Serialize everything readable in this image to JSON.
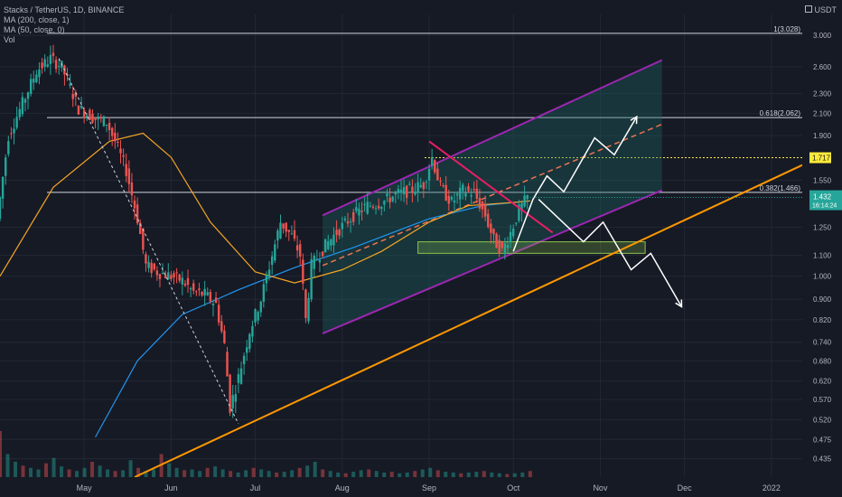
{
  "header": {
    "symbol": "Stacks / TetherUS, 1D, BINANCE",
    "ma200": "MA (200, close, 1)",
    "ma50": "MA (50, close, 0)",
    "vol": "Vol",
    "currency": "USDT"
  },
  "colors": {
    "background": "#161a25",
    "up": "#26a69a",
    "down": "#ef5350",
    "ma200": "#2196f3",
    "ma50": "#f5a623",
    "channel": "#9c27b0",
    "support": "#ff9800",
    "fib": "#d1d4dc",
    "projection": "#ffffff",
    "wedge": "#e91e63",
    "zone": "#8bc34a",
    "price_badge": "#26a69a",
    "level_badge": "#ffeb3b"
  },
  "chart_data": {
    "type": "candlestick",
    "title": "Stacks / TetherUS, 1D, BINANCE",
    "y_scale": "log",
    "ylim": [
      0.4,
      3.3
    ],
    "y_ticks": [
      "3.000",
      "2.600",
      "2.300",
      "2.100",
      "1.900",
      "1.550",
      "1.250",
      "1.100",
      "1.000",
      "0.900",
      "0.820",
      "0.740",
      "0.680",
      "0.620",
      "0.570",
      "0.520",
      "0.475",
      "0.435"
    ],
    "x_ticks": [
      "May",
      "Jun",
      "Jul",
      "Aug",
      "Sep",
      "Oct",
      "Nov",
      "Dec",
      "2022"
    ],
    "xlim": [
      "2021-04-01",
      "2022-01-12"
    ],
    "last_price": "1.432",
    "countdown": "16:14:24",
    "key_level": "1.717",
    "fib_levels": [
      {
        "label": "1(3.028)",
        "value": 3.028
      },
      {
        "label": "0.618(2.062)",
        "value": 2.062
      },
      {
        "label": "0.382(1.466)",
        "value": 1.466
      }
    ],
    "price_path": [
      [
        "2021-04-01",
        1.3
      ],
      [
        "2021-04-05",
        1.9
      ],
      [
        "2021-04-10",
        2.2
      ],
      [
        "2021-04-15",
        2.55
      ],
      [
        "2021-04-20",
        2.7
      ],
      [
        "2021-04-24",
        2.6
      ],
      [
        "2021-04-30",
        2.15
      ],
      [
        "2021-05-06",
        2.05
      ],
      [
        "2021-05-10",
        2.02
      ],
      [
        "2021-05-13",
        1.85
      ],
      [
        "2021-05-17",
        1.62
      ],
      [
        "2021-05-21",
        1.3
      ],
      [
        "2021-05-24",
        1.05
      ],
      [
        "2021-05-28",
        1.02
      ],
      [
        "2021-06-02",
        1.0
      ],
      [
        "2021-06-06",
        0.98
      ],
      [
        "2021-06-10",
        0.93
      ],
      [
        "2021-06-14",
        0.92
      ],
      [
        "2021-06-18",
        0.88
      ],
      [
        "2021-06-21",
        0.73
      ],
      [
        "2021-06-23",
        0.55
      ],
      [
        "2021-06-26",
        0.63
      ],
      [
        "2021-06-30",
        0.78
      ],
      [
        "2021-07-04",
        0.9
      ],
      [
        "2021-07-08",
        1.1
      ],
      [
        "2021-07-11",
        1.28
      ],
      [
        "2021-07-15",
        1.2
      ],
      [
        "2021-07-18",
        1.1
      ],
      [
        "2021-07-20",
        0.82
      ],
      [
        "2021-07-22",
        1.05
      ],
      [
        "2021-07-27",
        1.15
      ],
      [
        "2021-08-01",
        1.24
      ],
      [
        "2021-08-06",
        1.32
      ],
      [
        "2021-08-11",
        1.38
      ],
      [
        "2021-08-16",
        1.4
      ],
      [
        "2021-08-21",
        1.45
      ],
      [
        "2021-08-26",
        1.48
      ],
      [
        "2021-08-31",
        1.52
      ],
      [
        "2021-09-03",
        1.72
      ],
      [
        "2021-09-06",
        1.5
      ],
      [
        "2021-09-10",
        1.4
      ],
      [
        "2021-09-14",
        1.48
      ],
      [
        "2021-09-18",
        1.46
      ],
      [
        "2021-09-22",
        1.32
      ],
      [
        "2021-09-25",
        1.18
      ],
      [
        "2021-09-28",
        1.12
      ],
      [
        "2021-10-01",
        1.22
      ],
      [
        "2021-10-04",
        1.35
      ],
      [
        "2021-10-07",
        1.432
      ]
    ],
    "ma50_path": [
      [
        "2021-04-01",
        1.0
      ],
      [
        "2021-04-20",
        1.5
      ],
      [
        "2021-05-10",
        1.85
      ],
      [
        "2021-05-22",
        1.92
      ],
      [
        "2021-06-01",
        1.72
      ],
      [
        "2021-06-15",
        1.28
      ],
      [
        "2021-07-01",
        1.02
      ],
      [
        "2021-07-15",
        0.97
      ],
      [
        "2021-08-01",
        1.03
      ],
      [
        "2021-08-15",
        1.12
      ],
      [
        "2021-09-01",
        1.28
      ],
      [
        "2021-09-15",
        1.38
      ],
      [
        "2021-10-01",
        1.4
      ],
      [
        "2021-10-07",
        1.41
      ]
    ],
    "ma200_path": [
      [
        "2021-05-05",
        0.48
      ],
      [
        "2021-05-20",
        0.68
      ],
      [
        "2021-06-05",
        0.84
      ],
      [
        "2021-06-25",
        0.94
      ],
      [
        "2021-07-15",
        1.04
      ],
      [
        "2021-08-05",
        1.14
      ],
      [
        "2021-09-01",
        1.3
      ],
      [
        "2021-09-20",
        1.38
      ],
      [
        "2021-10-07",
        1.41
      ]
    ],
    "volume": {
      "ylim": [
        0,
        100
      ],
      "values": [
        60,
        30,
        20,
        15,
        12,
        10,
        18,
        25,
        14,
        10,
        8,
        12,
        20,
        15,
        10,
        8,
        9,
        22,
        12,
        8,
        10,
        30,
        18,
        12,
        9,
        10,
        8,
        12,
        14,
        10,
        8,
        6,
        9,
        12,
        10,
        8,
        6,
        7,
        9,
        12,
        15,
        20,
        10,
        8,
        6,
        5,
        7,
        9,
        10,
        8,
        6,
        7,
        5,
        6,
        8,
        10,
        12,
        9,
        7,
        6,
        5,
        6,
        7,
        8,
        6,
        5,
        4,
        5,
        6,
        8
      ]
    },
    "drawings": {
      "support_line": [
        [
          "2021-05-19",
          0.4
        ],
        [
          "2022-01-12",
          1.66
        ]
      ],
      "fib_anchor_line": [
        [
          "2021-04-22",
          2.7
        ],
        [
          "2021-06-25",
          0.51
        ]
      ],
      "channel_upper": [
        [
          "2021-07-25",
          1.32
        ],
        [
          "2021-11-23",
          2.68
        ]
      ],
      "channel_lower": [
        [
          "2021-07-25",
          0.77
        ],
        [
          "2021-11-23",
          1.48
        ]
      ],
      "channel_mid": [
        [
          "2021-07-25",
          1.05
        ],
        [
          "2021-11-23",
          2.0
        ]
      ],
      "wedge_line": [
        [
          "2021-09-01",
          1.85
        ],
        [
          "2021-10-15",
          1.22
        ]
      ],
      "demand_zone": {
        "x0": "2021-08-28",
        "x1": "2021-11-17",
        "y0": 1.11,
        "y1": 1.17
      },
      "bull_path": [
        [
          "2021-10-01",
          1.12
        ],
        [
          "2021-10-08",
          1.42
        ],
        [
          "2021-10-13",
          1.58
        ],
        [
          "2021-10-19",
          1.47
        ],
        [
          "2021-10-30",
          1.88
        ],
        [
          "2021-11-06",
          1.74
        ],
        [
          "2021-11-14",
          2.07
        ]
      ],
      "bear_path": [
        [
          "2021-10-10",
          1.42
        ],
        [
          "2021-10-26",
          1.17
        ],
        [
          "2021-11-02",
          1.28
        ],
        [
          "2021-11-12",
          1.03
        ],
        [
          "2021-11-19",
          1.11
        ],
        [
          "2021-11-30",
          0.87
        ]
      ]
    }
  }
}
